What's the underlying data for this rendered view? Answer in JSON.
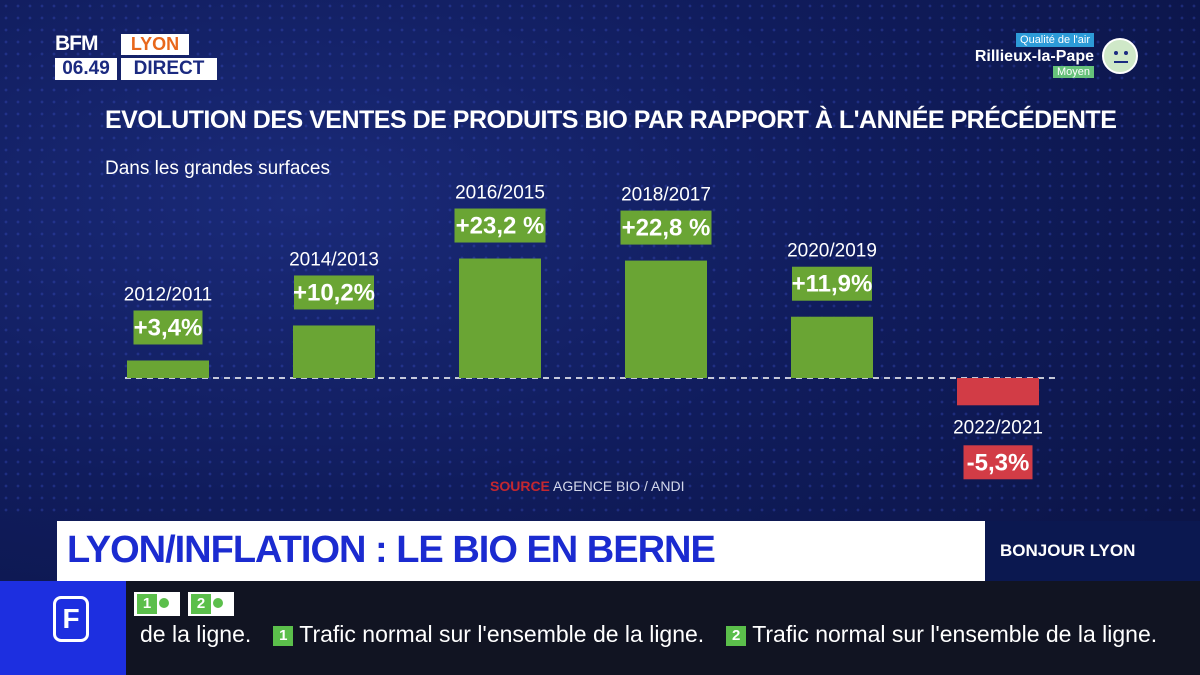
{
  "channel": {
    "logo_name": "BFM",
    "logo_city": "LYON",
    "time": "06.49",
    "live": "DIRECT"
  },
  "air_quality": {
    "label": "Qualité de l'air",
    "city": "Rillieux-la-Pape",
    "level": "Moyen",
    "icon": "neutral-face-icon"
  },
  "chart_data": {
    "type": "bar",
    "title": "EVOLUTION DES VENTES DE PRODUITS BIO PAR RAPPORT À L'ANNÉE PRÉCÉDENTE",
    "subtitle": "Dans les grandes surfaces",
    "categories": [
      "2012/2011",
      "2014/2013",
      "2016/2015",
      "2018/2017",
      "2020/2019",
      "2022/2021"
    ],
    "values": [
      3.4,
      10.2,
      23.2,
      22.8,
      11.9,
      -5.3
    ],
    "value_labels": [
      "+3,4%",
      "+10,2%",
      "+23,2 %",
      "+22,8 %",
      "+11,9%",
      "-5,3%"
    ],
    "unit": "%",
    "positive_color": "#6aa534",
    "negative_color": "#d23c46",
    "baseline": "dashed",
    "source_key": "SOURCE",
    "source_text": "AGENCE BIO / ANDI"
  },
  "headline": "LYON/INFLATION : LE BIO EN BERNE",
  "show_name": "BONJOUR LYON",
  "ticker": {
    "logo": "F",
    "badges": [
      "1",
      "2"
    ],
    "start": "de la ligne.",
    "items": [
      {
        "line": "1",
        "text": "Trafic normal sur l'ensemble de la ligne."
      },
      {
        "line": "2",
        "text": "Trafic normal sur l'ensemble de la ligne."
      }
    ]
  }
}
